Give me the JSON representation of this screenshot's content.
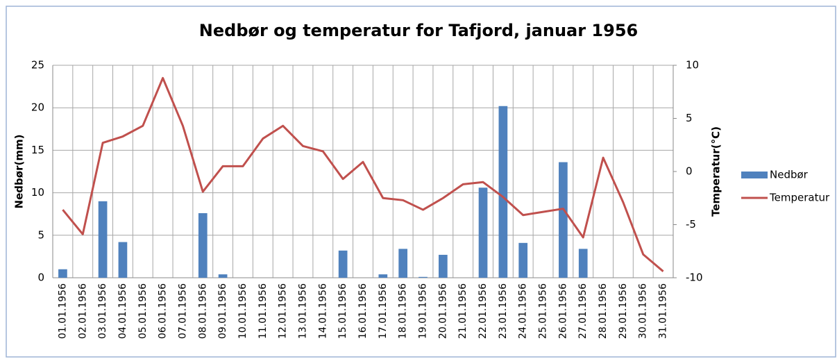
{
  "chart_data": {
    "type": "bar-line",
    "title": "Nedbør og temperatur for Tafjord, januar 1956",
    "y_label": "Nedbør(mm)",
    "y2_label": "Temperatur(°C)",
    "categories": [
      "01.01.1956",
      "02.01.1956",
      "03.01.1956",
      "04.01.1956",
      "05.01.1956",
      "06.01.1956",
      "07.01.1956",
      "08.01.1956",
      "09.01.1956",
      "10.01.1956",
      "11.01.1956",
      "12.01.1956",
      "13.01.1956",
      "14.01.1956",
      "15.01.1956",
      "16.01.1956",
      "17.01.1956",
      "18.01.1956",
      "19.01.1956",
      "20.01.1956",
      "21.01.1956",
      "22.01.1956",
      "23.01.1956",
      "24.01.1956",
      "25.01.1956",
      "26.01.1956",
      "27.01.1956",
      "28.01.1956",
      "29.01.1956",
      "30.01.1956",
      "31.01.1956"
    ],
    "series": [
      {
        "name": "Nedbør",
        "type": "bar",
        "color": "#4f81bd",
        "values": [
          1.0,
          0,
          9.0,
          4.2,
          0,
          0,
          0,
          7.6,
          0.4,
          0,
          0,
          0,
          0,
          0,
          3.2,
          0,
          0.4,
          3.4,
          0.1,
          2.7,
          0,
          10.6,
          20.2,
          4.1,
          0,
          13.6,
          3.4,
          0,
          0,
          0,
          0
        ]
      },
      {
        "name": "Temperatur",
        "type": "line",
        "axis": "y2",
        "color": "#c0504d",
        "values": [
          -3.6,
          -5.9,
          2.7,
          3.3,
          4.3,
          8.8,
          4.3,
          -1.9,
          0.5,
          0.5,
          3.1,
          4.3,
          2.4,
          1.9,
          -0.7,
          0.9,
          -2.5,
          -2.7,
          -3.6,
          -2.5,
          -1.2,
          -1.0,
          -2.4,
          -4.1,
          -3.8,
          -3.5,
          -6.2,
          1.3,
          -2.9,
          -7.8,
          -9.4
        ]
      }
    ],
    "ylim": [
      0,
      25
    ],
    "yticks": [
      0,
      5,
      10,
      15,
      20,
      25
    ],
    "y2lim": [
      -10,
      10
    ],
    "y2ticks": [
      -10,
      -5,
      0,
      5,
      10
    ],
    "grid": true,
    "legend": "right"
  }
}
